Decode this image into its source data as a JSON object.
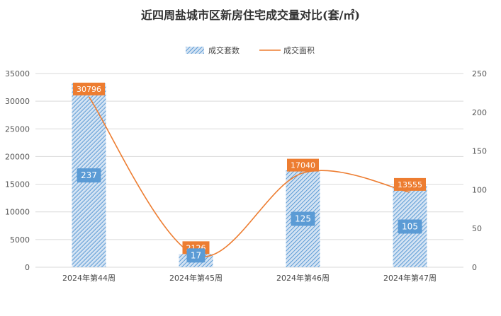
{
  "chart_data": {
    "type": "bar",
    "title": "近四周盐城市区新房住宅成交量对比(套/㎡)",
    "categories": [
      "2024年第44周",
      "2024年第45周",
      "2024年第46周",
      "2024年第47周"
    ],
    "series": [
      {
        "name": "成交套数",
        "type": "bar",
        "axis": "right",
        "values": [
          237,
          17,
          125,
          105
        ],
        "color": "#5b9bd5"
      },
      {
        "name": "成交面积",
        "type": "line",
        "axis": "left",
        "values": [
          30796,
          2126,
          17040,
          13555
        ],
        "color": "#ed7d31"
      }
    ],
    "left_axis": {
      "min": 0,
      "max": 35000,
      "ticks": [
        0,
        5000,
        10000,
        15000,
        20000,
        25000,
        30000,
        35000
      ]
    },
    "right_axis": {
      "min": 0,
      "max": 250,
      "ticks": [
        0,
        50,
        100,
        150,
        200,
        250
      ]
    },
    "legend_position": "top-center",
    "grid": true
  }
}
